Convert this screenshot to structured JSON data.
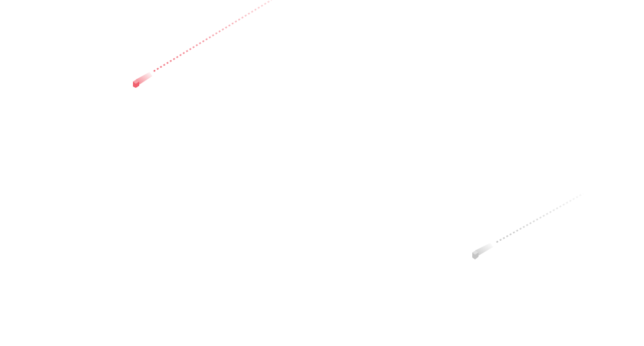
{
  "decorations": {
    "streaks": [
      {
        "name": "red-streak",
        "color": "#f0606e"
      },
      {
        "name": "gray-streak",
        "color": "#bdbdbd"
      }
    ]
  },
  "background": "#ffffff"
}
